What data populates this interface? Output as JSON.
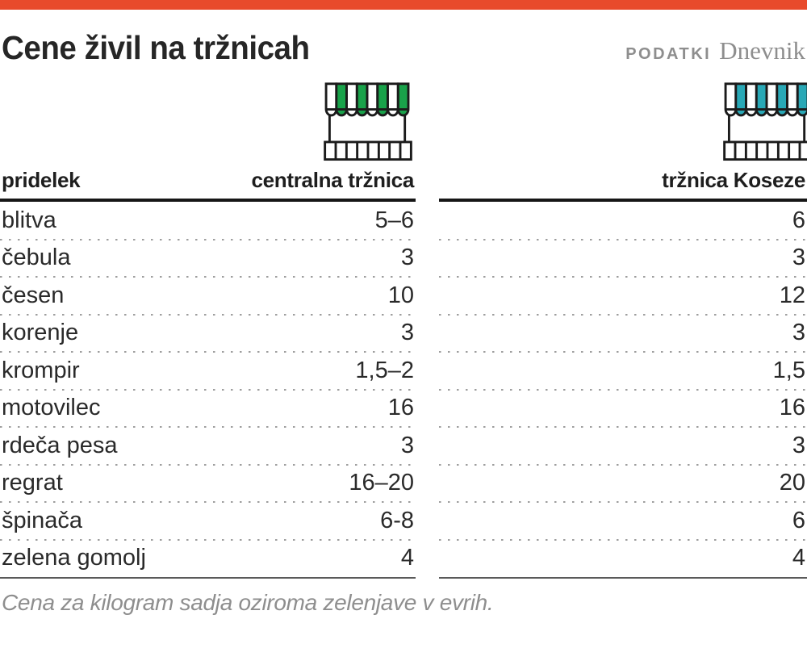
{
  "header": {
    "title": "Cene živil na tržnicah",
    "source_label": "PODATKI",
    "source_name": "Dnevnik"
  },
  "table": {
    "product_header": "pridelek",
    "market1_header": "centralna tržnica",
    "market2_header": "tržnica Koseze",
    "rows": [
      {
        "product": "blitva",
        "market1": "5–6",
        "market2": "6"
      },
      {
        "product": "čebula",
        "market1": "3",
        "market2": "3"
      },
      {
        "product": "česen",
        "market1": "10",
        "market2": "12"
      },
      {
        "product": "korenje",
        "market1": "3",
        "market2": "3"
      },
      {
        "product": "krompir",
        "market1": "1,5–2",
        "market2": "1,5"
      },
      {
        "product": "motovilec",
        "market1": "16",
        "market2": "16"
      },
      {
        "product": "rdeča pesa",
        "market1": "3",
        "market2": "3"
      },
      {
        "product": "regrat",
        "market1": "16–20",
        "market2": "20"
      },
      {
        "product": "špinača",
        "market1": "6-8",
        "market2": "6"
      },
      {
        "product": "zelena gomolj",
        "market1": "4",
        "market2": "4"
      }
    ]
  },
  "footnote": "Cena za kilogram sadja oziroma zelenjave v evrih.",
  "icons": {
    "market1": "market-stall-icon-green",
    "market2": "market-stall-icon-teal"
  },
  "colors": {
    "accent_bar": "#e84a2b",
    "market1_icon": "#19a24a",
    "market2_icon": "#29a8b6",
    "text": "#272727",
    "muted": "#8e8e8e",
    "dotted_separator": "#9e9e9e"
  },
  "chart_data": {
    "type": "table",
    "title": "Cene živil na tržnicah",
    "columns": [
      "pridelek",
      "centralna tržnica",
      "tržnica Koseze"
    ],
    "rows": [
      [
        "blitva",
        "5–6",
        "6"
      ],
      [
        "čebula",
        "3",
        "3"
      ],
      [
        "česen",
        "10",
        "12"
      ],
      [
        "korenje",
        "3",
        "3"
      ],
      [
        "krompir",
        "1,5–2",
        "1,5"
      ],
      [
        "motovilec",
        "16",
        "16"
      ],
      [
        "rdeča pesa",
        "3",
        "3"
      ],
      [
        "regrat",
        "16–20",
        "20"
      ],
      [
        "špinača",
        "6-8",
        "6"
      ],
      [
        "zelena gomolj",
        "4",
        "4"
      ]
    ],
    "note": "Cena za kilogram sadja oziroma zelenjave v evrih."
  }
}
